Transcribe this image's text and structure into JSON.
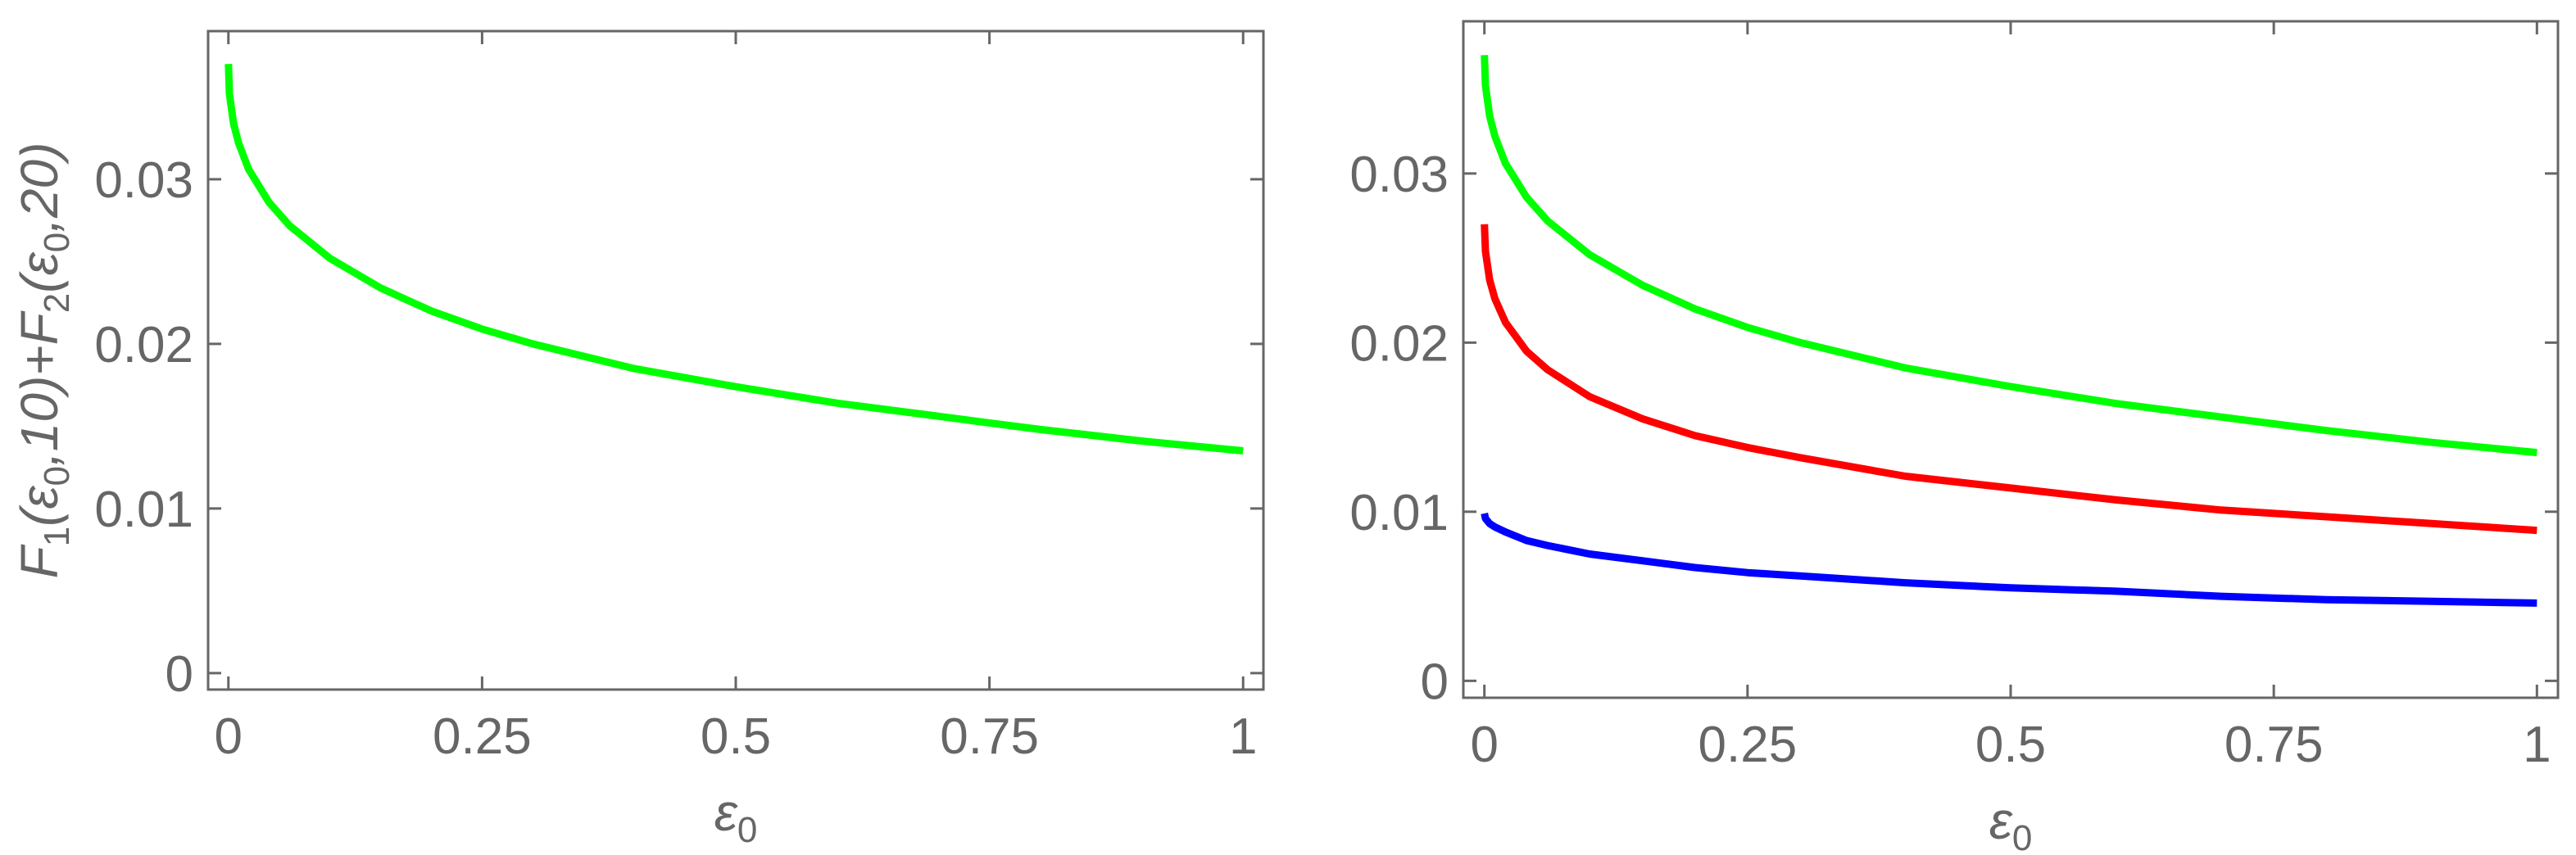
{
  "chart_data": [
    {
      "type": "line",
      "title": "",
      "xlabel": "ε",
      "xlabel_sub": "0",
      "ylabel_parts": [
        {
          "t": "F"
        },
        {
          "t": "1",
          "sub": true
        },
        {
          "t": "(ε"
        },
        {
          "t": "0",
          "sub": true
        },
        {
          "t": ",10)+F"
        },
        {
          "t": "2",
          "sub": true
        },
        {
          "t": "(ε"
        },
        {
          "t": "0",
          "sub": true
        },
        {
          "t": ",20)"
        }
      ],
      "xlim": [
        -0.02,
        1.02
      ],
      "ylim": [
        -0.001,
        0.039
      ],
      "xticks": [
        0,
        0.25,
        0.5,
        0.75,
        1
      ],
      "xtick_labels": [
        "0",
        "0.25",
        "0.5",
        "0.75",
        "1"
      ],
      "yticks": [
        0,
        0.01,
        0.02,
        0.03
      ],
      "ytick_labels": [
        "0",
        "0.01",
        "0.02",
        "0.03"
      ],
      "grid": false,
      "series": [
        {
          "color": "#00ff00",
          "x": [
            0,
            0.001,
            0.005,
            0.01,
            0.02,
            0.04,
            0.06,
            0.1,
            0.15,
            0.2,
            0.25,
            0.3,
            0.4,
            0.5,
            0.6,
            0.7,
            0.75,
            0.8,
            0.9,
            1.0
          ],
          "y": [
            0.037,
            0.0352,
            0.0334,
            0.0322,
            0.0306,
            0.0286,
            0.0272,
            0.0252,
            0.0234,
            0.022,
            0.0209,
            0.02,
            0.0185,
            0.0174,
            0.0164,
            0.0156,
            0.0152,
            0.0148,
            0.0141,
            0.0135
          ]
        }
      ]
    },
    {
      "type": "line",
      "title": "",
      "xlabel": "ε",
      "xlabel_sub": "0",
      "xlim": [
        -0.02,
        1.02
      ],
      "ylim": [
        -0.001,
        0.039
      ],
      "xticks": [
        0,
        0.25,
        0.5,
        0.75,
        1
      ],
      "xtick_labels": [
        "0",
        "0.25",
        "0.5",
        "0.75",
        "1"
      ],
      "yticks": [
        0,
        0.01,
        0.02,
        0.03
      ],
      "ytick_labels": [
        "0",
        "0.01",
        "0.02",
        "0.03"
      ],
      "grid": false,
      "series": [
        {
          "color": "#00ff00",
          "x": [
            0,
            0.001,
            0.005,
            0.01,
            0.02,
            0.04,
            0.06,
            0.1,
            0.15,
            0.2,
            0.25,
            0.3,
            0.4,
            0.5,
            0.6,
            0.7,
            0.75,
            0.8,
            0.9,
            1.0
          ],
          "y": [
            0.037,
            0.0352,
            0.0334,
            0.0322,
            0.0306,
            0.0286,
            0.0272,
            0.0252,
            0.0234,
            0.022,
            0.0209,
            0.02,
            0.0185,
            0.0174,
            0.0164,
            0.0156,
            0.0152,
            0.0148,
            0.0141,
            0.0135
          ]
        },
        {
          "color": "#ff0000",
          "x": [
            0,
            0.001,
            0.005,
            0.01,
            0.02,
            0.04,
            0.06,
            0.1,
            0.15,
            0.2,
            0.25,
            0.3,
            0.4,
            0.5,
            0.6,
            0.7,
            0.75,
            0.8,
            0.9,
            1.0
          ],
          "y": [
            0.027,
            0.0254,
            0.0237,
            0.0226,
            0.0212,
            0.0195,
            0.0184,
            0.0168,
            0.0155,
            0.0145,
            0.0138,
            0.0132,
            0.0121,
            0.0114,
            0.0107,
            0.0101,
            0.0099,
            0.0097,
            0.0093,
            0.0089
          ]
        },
        {
          "color": "#0000ff",
          "x": [
            0,
            0.001,
            0.005,
            0.01,
            0.02,
            0.04,
            0.06,
            0.1,
            0.15,
            0.2,
            0.25,
            0.3,
            0.4,
            0.5,
            0.6,
            0.7,
            0.75,
            0.8,
            0.9,
            1.0
          ],
          "y": [
            0.0099,
            0.0096,
            0.0093,
            0.0091,
            0.0088,
            0.0083,
            0.008,
            0.0075,
            0.0071,
            0.0067,
            0.0064,
            0.0062,
            0.0058,
            0.0055,
            0.0053,
            0.005,
            0.0049,
            0.0048,
            0.0047,
            0.0046
          ]
        }
      ]
    }
  ]
}
